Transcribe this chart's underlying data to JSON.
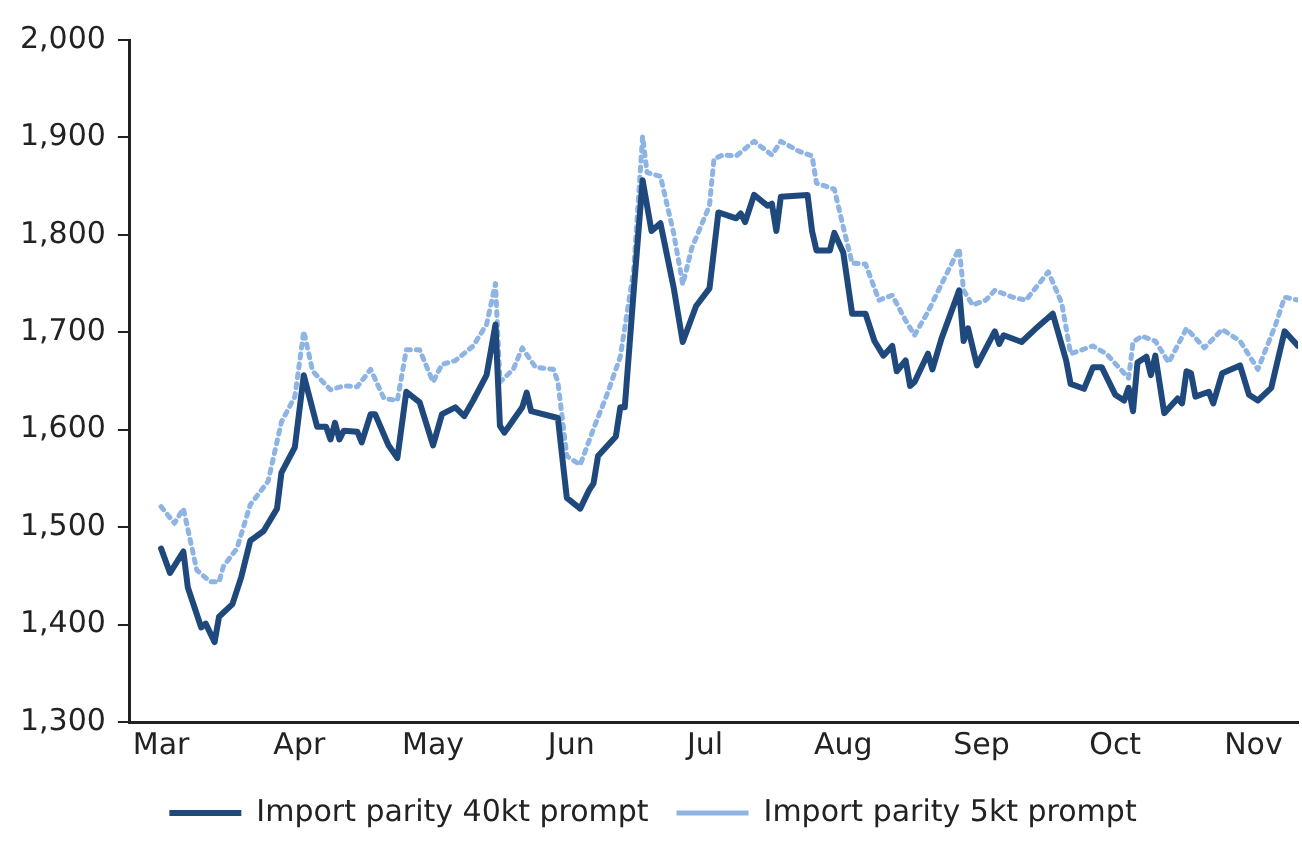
{
  "chart_data": {
    "type": "line",
    "xlim": [
      "--02-22",
      "--11-11"
    ],
    "xticks": [
      {
        "value": "--03-01",
        "label": "Mar"
      },
      {
        "value": "--04-01",
        "label": "Apr"
      },
      {
        "value": "--05-01",
        "label": "May"
      },
      {
        "value": "--06-01",
        "label": "Jun"
      },
      {
        "value": "--07-01",
        "label": "Jul"
      },
      {
        "value": "--08-01",
        "label": "Aug"
      },
      {
        "value": "--09-01",
        "label": "Sep"
      },
      {
        "value": "--10-01",
        "label": "Oct"
      },
      {
        "value": "--11-01",
        "label": "Nov"
      }
    ],
    "ylim": [
      1300,
      2000
    ],
    "yticks": [
      {
        "value": 1300,
        "label": "1,300"
      },
      {
        "value": 1400,
        "label": "1,400"
      },
      {
        "value": 1500,
        "label": "1,500"
      },
      {
        "value": 1600,
        "label": "1,600"
      },
      {
        "value": 1700,
        "label": "1,700"
      },
      {
        "value": 1800,
        "label": "1,800"
      },
      {
        "value": 1900,
        "label": "1,900"
      },
      {
        "value": 2000,
        "label": "2,000"
      }
    ],
    "legend": "bottom",
    "marker": "none",
    "series": [
      {
        "name": "Import parity 40kt prompt",
        "color": "#1f497d",
        "line_style": "solid",
        "x": [
          "--03-01",
          "--03-03",
          "--03-06",
          "--03-07",
          "--03-10",
          "--03-11",
          "--03-13",
          "--03-14",
          "--03-17",
          "--03-19",
          "--03-21",
          "--03-24",
          "--03-27",
          "--03-28",
          "--03-31",
          "--04-02",
          "--04-05",
          "--04-07",
          "--04-08",
          "--04-09",
          "--04-10",
          "--04-11",
          "--04-14",
          "--04-15",
          "--04-17",
          "--04-18",
          "--04-21",
          "--04-23",
          "--04-25",
          "--04-28",
          "--05-01",
          "--05-03",
          "--05-06",
          "--05-08",
          "--05-10",
          "--05-13",
          "--05-15",
          "--05-16",
          "--05-17",
          "--05-21",
          "--05-22",
          "--05-23",
          "--05-29",
          "--05-31",
          "--06-03",
          "--06-05",
          "--06-06",
          "--06-07",
          "--06-11",
          "--06-12",
          "--06-13",
          "--06-15",
          "--06-17",
          "--06-19",
          "--06-21",
          "--06-24",
          "--06-26",
          "--06-29",
          "--07-02",
          "--07-04",
          "--07-08",
          "--07-09",
          "--07-10",
          "--07-12",
          "--07-15",
          "--07-16",
          "--07-17",
          "--07-18",
          "--07-24",
          "--07-25",
          "--07-26",
          "--07-29",
          "--07-30",
          "--08-01",
          "--08-03",
          "--08-06",
          "--08-08",
          "--08-10",
          "--08-12",
          "--08-13",
          "--08-15",
          "--08-16",
          "--08-17",
          "--08-20",
          "--08-21",
          "--08-23",
          "--08-27",
          "--08-28",
          "--08-29",
          "--08-31",
          "--09-04",
          "--09-05",
          "--09-06",
          "--09-10",
          "--09-13",
          "--09-17",
          "--09-20",
          "--09-21",
          "--09-24",
          "--09-26",
          "--09-28",
          "--10-01",
          "--10-03",
          "--10-04",
          "--10-05",
          "--10-06",
          "--10-08",
          "--10-09",
          "--10-10",
          "--10-12",
          "--10-15",
          "--10-16",
          "--10-17",
          "--10-18",
          "--10-19",
          "--10-22",
          "--10-23",
          "--10-25",
          "--10-29",
          "--10-31",
          "--11-02",
          "--11-05",
          "--11-07",
          "--11-08",
          "--11-10",
          "--11-11"
        ],
        "values": [
          1478,
          1453,
          1475,
          1438,
          1397,
          1401,
          1382,
          1408,
          1421,
          1449,
          1486,
          1496,
          1519,
          1556,
          1582,
          1656,
          1603,
          1603,
          1590,
          1607,
          1590,
          1599,
          1598,
          1587,
          1616,
          1616,
          1584,
          1571,
          1639,
          1628,
          1584,
          1616,
          1623,
          1614,
          1630,
          1656,
          1708,
          1604,
          1597,
          1623,
          1638,
          1619,
          1612,
          1530,
          1519,
          1538,
          1545,
          1573,
          1593,
          1623,
          1623,
          1742,
          1856,
          1804,
          1812,
          1745,
          1690,
          1727,
          1745,
          1823,
          1817,
          1822,
          1813,
          1841,
          1830,
          1832,
          1804,
          1839,
          1841,
          1804,
          1784,
          1784,
          1802,
          1782,
          1719,
          1719,
          1691,
          1676,
          1686,
          1660,
          1671,
          1645,
          1649,
          1678,
          1662,
          1693,
          1743,
          1691,
          1704,
          1666,
          1701,
          1688,
          1697,
          1690,
          1703,
          1719,
          1671,
          1647,
          1642,
          1664,
          1664,
          1636,
          1630,
          1643,
          1619,
          1669,
          1675,
          1656,
          1676,
          1617,
          1632,
          1627,
          1660,
          1658,
          1634,
          1639,
          1627,
          1658,
          1666,
          1636,
          1630,
          1643,
          1682,
          1701,
          1691,
          1686
        ]
      },
      {
        "name": "Import parity 5kt prompt",
        "color": "#8db4e2",
        "line_style": "dotted",
        "x": [
          "--03-01",
          "--03-04",
          "--03-06",
          "--03-09",
          "--03-12",
          "--03-14",
          "--03-15",
          "--03-18",
          "--03-21",
          "--03-25",
          "--03-28",
          "--03-31",
          "--04-02",
          "--04-04",
          "--04-08",
          "--04-11",
          "--04-14",
          "--04-17",
          "--04-20",
          "--04-23",
          "--04-25",
          "--04-28",
          "--05-01",
          "--05-03",
          "--05-06",
          "--05-10",
          "--05-13",
          "--05-15",
          "--05-16",
          "--05-19",
          "--05-21",
          "--05-24",
          "--05-28",
          "--05-29",
          "--05-31",
          "--06-03",
          "--06-06",
          "--06-09",
          "--06-12",
          "--06-15",
          "--06-17",
          "--06-18",
          "--06-21",
          "--06-24",
          "--06-26",
          "--06-28",
          "--07-02",
          "--07-03",
          "--07-05",
          "--07-08",
          "--07-12",
          "--07-16",
          "--07-18",
          "--07-22",
          "--07-25",
          "--07-26",
          "--07-30",
          "--08-01",
          "--08-03",
          "--08-06",
          "--08-09",
          "--08-12",
          "--08-15",
          "--08-17",
          "--08-20",
          "--08-23",
          "--08-27",
          "--08-28",
          "--08-30",
          "--09-02",
          "--09-04",
          "--09-08",
          "--09-11",
          "--09-16",
          "--09-19",
          "--09-21",
          "--09-26",
          "--09-29",
          "--10-04",
          "--10-05",
          "--10-07",
          "--10-10",
          "--10-13",
          "--10-17",
          "--10-21",
          "--10-25",
          "--10-29",
          "--11-02",
          "--11-06",
          "--11-08",
          "--11-11"
        ],
        "values": [
          1521,
          1504,
          1519,
          1456,
          1444,
          1444,
          1460,
          1478,
          1523,
          1547,
          1608,
          1634,
          1701,
          1660,
          1641,
          1645,
          1644,
          1662,
          1632,
          1630,
          1682,
          1682,
          1649,
          1667,
          1671,
          1686,
          1708,
          1750,
          1649,
          1662,
          1684,
          1664,
          1662,
          1649,
          1573,
          1564,
          1601,
          1636,
          1675,
          1764,
          1901,
          1864,
          1860,
          1801,
          1749,
          1786,
          1830,
          1878,
          1882,
          1881,
          1896,
          1882,
          1896,
          1886,
          1881,
          1853,
          1847,
          1808,
          1771,
          1770,
          1733,
          1738,
          1712,
          1697,
          1721,
          1749,
          1786,
          1743,
          1728,
          1733,
          1743,
          1736,
          1733,
          1762,
          1730,
          1678,
          1686,
          1678,
          1653,
          1690,
          1696,
          1691,
          1669,
          1704,
          1684,
          1703,
          1691,
          1662,
          1708,
          1736,
          1733
        ]
      }
    ]
  }
}
